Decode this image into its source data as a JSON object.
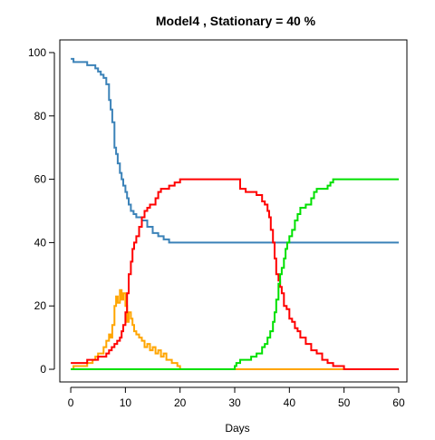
{
  "chart_data": {
    "type": "line",
    "title": "Model4 , Stationary = 40 %",
    "xlabel": "Days",
    "ylabel": "",
    "xlim": [
      -2,
      61.5
    ],
    "ylim": [
      -4,
      104
    ],
    "xticks": [
      0,
      10,
      20,
      30,
      40,
      50,
      60
    ],
    "yticks": [
      0,
      20,
      40,
      60,
      80,
      100
    ],
    "grid": false,
    "legend": "none",
    "series": [
      {
        "color": "#3B82B8",
        "x": [
          0,
          0.5,
          2,
          3,
          4,
          4.5,
          5,
          5.5,
          6,
          6.5,
          7,
          7.3,
          7.6,
          8,
          8.3,
          8.6,
          9,
          9.3,
          9.6,
          10,
          10.3,
          10.6,
          11,
          11.5,
          12,
          13,
          14,
          15,
          16,
          17,
          18,
          20,
          25,
          30,
          35,
          40,
          45,
          50,
          55,
          60
        ],
        "y": [
          98,
          97,
          97,
          96,
          96,
          95,
          94,
          93,
          92,
          90,
          85,
          82,
          78,
          70,
          68,
          65,
          62,
          60,
          58,
          56,
          54,
          52,
          50,
          49,
          48,
          47,
          45,
          43,
          42,
          41,
          40,
          40,
          40,
          40,
          40,
          40,
          40,
          40,
          40,
          40
        ]
      },
      {
        "color": "#FFA500",
        "x": [
          0,
          0.5,
          1,
          2,
          3,
          3.5,
          4,
          4.5,
          5,
          5.5,
          6,
          6.5,
          7,
          7.3,
          7.6,
          8,
          8.3,
          8.6,
          9,
          9.3,
          9.6,
          10,
          10.3,
          10.6,
          11,
          11.3,
          11.6,
          12,
          12.5,
          13,
          13.5,
          14,
          14.5,
          15,
          15.5,
          16,
          16.5,
          17,
          17.5,
          18,
          18.5,
          19,
          19.5,
          20,
          22,
          25,
          30,
          35,
          40,
          45,
          47.5,
          50,
          55,
          60
        ],
        "y": [
          0,
          1,
          1,
          1,
          2,
          2,
          3,
          4,
          5,
          5,
          7,
          9,
          11,
          10,
          14,
          20,
          23,
          21,
          25,
          22,
          24,
          20,
          15,
          18,
          16,
          14,
          12,
          11,
          10,
          9,
          7,
          8,
          6,
          7,
          5,
          6,
          4,
          5,
          3,
          3,
          2,
          2,
          1,
          0,
          0,
          0,
          0,
          0,
          0,
          0,
          0,
          0,
          0,
          0
        ]
      },
      {
        "color": "#FF0000",
        "x": [
          0,
          1,
          2,
          3,
          4,
          5,
          6,
          6.5,
          7,
          7.5,
          8,
          8.5,
          9,
          9.3,
          9.6,
          10,
          10.3,
          10.6,
          11,
          11.3,
          11.6,
          12,
          12.5,
          13,
          13.5,
          14,
          14.5,
          15,
          15.5,
          16,
          16.5,
          17,
          18,
          19,
          20,
          22,
          25,
          28,
          30,
          31,
          32,
          33,
          34,
          35,
          35.5,
          36,
          36.3,
          36.6,
          37,
          37.3,
          37.6,
          38,
          38.3,
          38.6,
          39,
          39.5,
          40,
          40.5,
          41,
          41.5,
          42,
          43,
          44,
          45,
          46,
          47,
          48,
          50,
          55,
          60
        ],
        "y": [
          2,
          2,
          2,
          3,
          3,
          4,
          4,
          5,
          6,
          7,
          8,
          9,
          10,
          12,
          14,
          18,
          24,
          30,
          34,
          38,
          40,
          42,
          45,
          48,
          50,
          51,
          52,
          52,
          54,
          56,
          57,
          57,
          58,
          59,
          60,
          60,
          60,
          60,
          60,
          57,
          56,
          56,
          55,
          53,
          52,
          50,
          48,
          44,
          40,
          35,
          30,
          28,
          26,
          24,
          20,
          19,
          16,
          15,
          13,
          12,
          10,
          8,
          6,
          5,
          3,
          2,
          1,
          0,
          0,
          0
        ]
      },
      {
        "color": "#00E000",
        "x": [
          0,
          10,
          20,
          25,
          29.5,
          30,
          30.3,
          31,
          33,
          34,
          35,
          35.5,
          36,
          36.5,
          37,
          37.3,
          37.6,
          38,
          38.3,
          38.6,
          39,
          39.3,
          39.6,
          40,
          40.5,
          41,
          41.5,
          42,
          43,
          44,
          44.5,
          45,
          46,
          47,
          47.5,
          48,
          50,
          55,
          60
        ],
        "y": [
          0,
          0,
          0,
          0,
          0,
          1,
          2,
          3,
          4,
          5,
          7,
          8,
          10,
          12,
          15,
          18,
          22,
          27,
          30,
          32,
          35,
          38,
          40,
          42,
          44,
          47,
          49,
          51,
          52,
          54,
          56,
          57,
          57,
          58,
          59,
          60,
          60,
          60,
          60
        ]
      }
    ]
  }
}
